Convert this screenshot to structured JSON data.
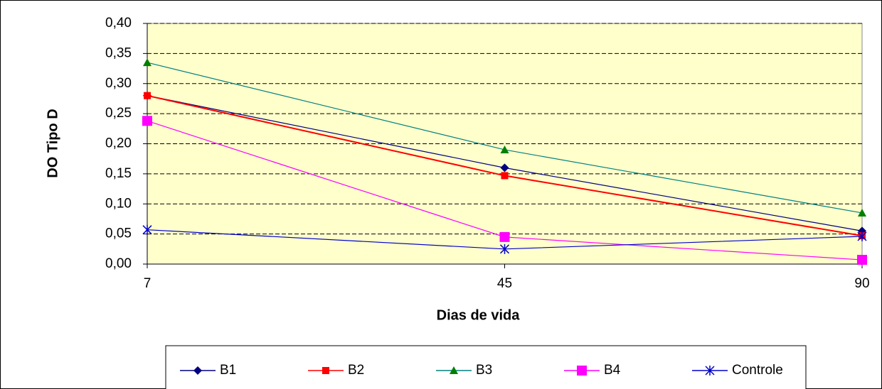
{
  "chart_data": {
    "type": "line",
    "x_label": "Dias de vida",
    "y_label": "DO Tipo D",
    "categories": [
      "7",
      "45",
      "90"
    ],
    "series": [
      {
        "name": "B1",
        "color": "#000080",
        "values": [
          0.28,
          0.16,
          0.055
        ]
      },
      {
        "name": "B2",
        "color": "#FF0000",
        "values": [
          0.28,
          0.147,
          0.047
        ]
      },
      {
        "name": "B3",
        "color": "#008080",
        "values": [
          0.335,
          0.19,
          0.085
        ]
      },
      {
        "name": "B4",
        "color": "#FF00FF",
        "values": [
          0.238,
          0.045,
          0.007
        ]
      },
      {
        "name": "Controle",
        "color": "#0000CC",
        "values": [
          0.057,
          0.025,
          0.046
        ]
      }
    ],
    "ylim": [
      0,
      0.4
    ],
    "yticks": [
      {
        "value": 0,
        "label": "0,00"
      },
      {
        "value": 0.05,
        "label": "0,05"
      },
      {
        "value": 0.1,
        "label": "0,10"
      },
      {
        "value": 0.15,
        "label": "0,15"
      },
      {
        "value": 0.2,
        "label": "0,20"
      },
      {
        "value": 0.25,
        "label": "0,25"
      },
      {
        "value": 0.3,
        "label": "0,30"
      },
      {
        "value": 0.35,
        "label": "0,35"
      },
      {
        "value": 0.4,
        "label": "0,40"
      }
    ],
    "grid": true,
    "legend": "bottom"
  }
}
